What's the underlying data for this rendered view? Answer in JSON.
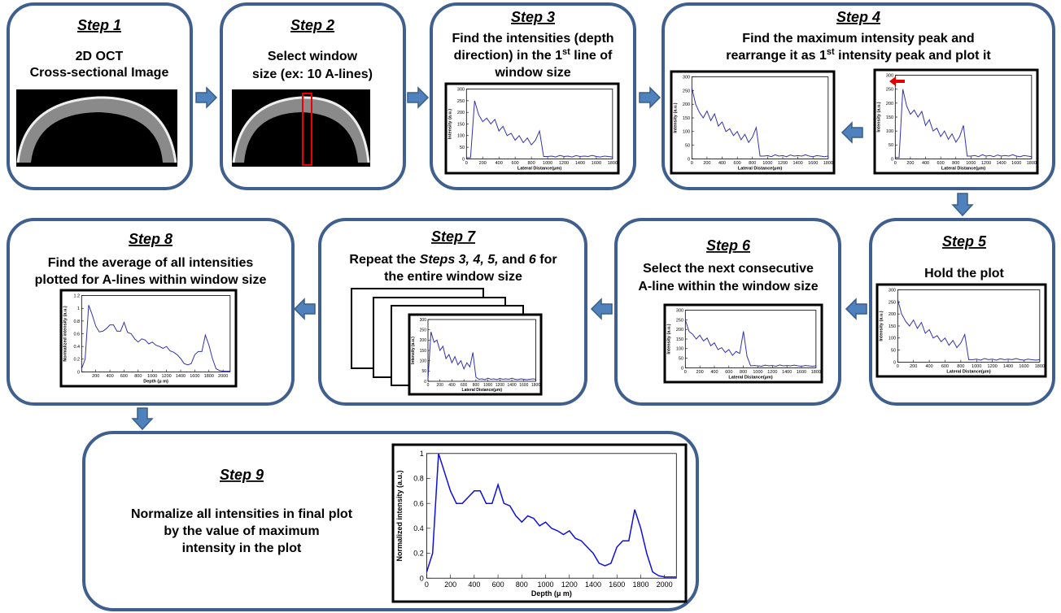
{
  "steps": [
    {
      "title": "Step 1",
      "text": [
        "2D OCT",
        "Cross-sectional Image"
      ]
    },
    {
      "title": "Step 2",
      "text": [
        "Select window",
        "size (ex: 10 A-lines)"
      ]
    },
    {
      "title": "Step 3",
      "text": [
        "Find the intensities (depth",
        "direction) in the 1",
        "st",
        " line of",
        "window size"
      ]
    },
    {
      "title": "Step 4",
      "text": [
        "Find the maximum intensity peak and",
        "rearrange it as 1",
        "st",
        " intensity peak and plot it"
      ]
    },
    {
      "title": "Step 5",
      "text": [
        "Hold the plot"
      ]
    },
    {
      "title": "Step 6",
      "text": [
        "Select the next consecutive",
        "A-line within the window size"
      ]
    },
    {
      "title": "Step 7",
      "text": [
        "Repeat the ",
        "Steps 3, 4, 5,",
        " and ",
        "6",
        " for",
        "the entire window size"
      ]
    },
    {
      "title": "Step 8",
      "text": [
        "Find the average of all intensities",
        "plotted for A-lines within window size"
      ]
    },
    {
      "title": "Step 9",
      "text": [
        "Normalize all intensities in final plot",
        "by the value of maximum",
        "intensity in the plot"
      ]
    }
  ],
  "plots": [
    {
      "type": "line",
      "xlabel": "Lateral Distance(μm)",
      "ylabel": "Intensity (a.u.)",
      "color": "#3333aa",
      "xlim": [
        0,
        1800
      ],
      "ylim": [
        0,
        300
      ],
      "xticks": [
        0,
        200,
        400,
        600,
        800,
        1000,
        1200,
        1400,
        1600,
        1800
      ],
      "yticks": [
        0,
        50,
        100,
        150,
        200,
        250,
        300
      ],
      "x": [
        0,
        50,
        100,
        150,
        200,
        250,
        300,
        350,
        400,
        450,
        500,
        550,
        600,
        650,
        700,
        750,
        800,
        850,
        900,
        950,
        1000,
        1050,
        1100,
        1150,
        1200,
        1250,
        1300,
        1350,
        1400,
        1450,
        1500,
        1550,
        1600,
        1650,
        1700,
        1750,
        1800
      ],
      "values": [
        5,
        5,
        250,
        190,
        160,
        175,
        150,
        170,
        120,
        140,
        100,
        110,
        80,
        100,
        70,
        90,
        60,
        80,
        120,
        10,
        10,
        12,
        8,
        15,
        10,
        12,
        8,
        14,
        10,
        12,
        10,
        15,
        10,
        8,
        12,
        10,
        8
      ]
    },
    {
      "type": "line",
      "xlabel": "Lateral Distance(μm)",
      "ylabel": "Intensity (a.u.)",
      "color": "#3333aa",
      "xlim": [
        0,
        1800
      ],
      "ylim": [
        0,
        300
      ],
      "xticks": [
        0,
        200,
        400,
        600,
        800,
        1000,
        1200,
        1400,
        1600,
        1800
      ],
      "yticks": [
        0,
        50,
        100,
        150,
        200,
        250,
        300
      ],
      "x": [
        0,
        50,
        100,
        150,
        200,
        250,
        300,
        350,
        400,
        450,
        500,
        550,
        600,
        650,
        700,
        750,
        800,
        850,
        900,
        950,
        1000,
        1050,
        1100,
        1150,
        1200,
        1250,
        1300,
        1350,
        1400,
        1450,
        1500,
        1550,
        1600,
        1650,
        1700,
        1750,
        1800
      ],
      "values": [
        260,
        200,
        170,
        150,
        175,
        140,
        165,
        120,
        135,
        100,
        110,
        85,
        100,
        70,
        90,
        60,
        80,
        115,
        10,
        10,
        12,
        8,
        15,
        10,
        12,
        8,
        14,
        10,
        12,
        10,
        15,
        10,
        8,
        12,
        10,
        8,
        10
      ]
    },
    {
      "type": "line",
      "xlabel": "Lateral Distance(μm)",
      "ylabel": "Intensity (a.u.)",
      "color": "#3333aa",
      "xlim": [
        0,
        1800
      ],
      "ylim": [
        0,
        300
      ],
      "xticks": [
        0,
        200,
        400,
        600,
        800,
        1000,
        1200,
        1400,
        1600,
        1800
      ],
      "yticks": [
        0,
        50,
        100,
        150,
        200,
        250,
        300
      ],
      "x": [
        0,
        50,
        100,
        150,
        200,
        250,
        300,
        350,
        400,
        450,
        500,
        550,
        600,
        650,
        700,
        750,
        800,
        850,
        900,
        950,
        1000,
        1050,
        1100,
        1150,
        1200,
        1250,
        1300,
        1350,
        1400,
        1450,
        1500,
        1550,
        1600,
        1650,
        1700,
        1750,
        1800
      ],
      "values": [
        5,
        5,
        250,
        190,
        160,
        175,
        150,
        170,
        120,
        140,
        100,
        110,
        80,
        100,
        70,
        90,
        60,
        80,
        120,
        10,
        10,
        12,
        8,
        15,
        10,
        12,
        8,
        14,
        10,
        12,
        10,
        15,
        10,
        8,
        12,
        10,
        8
      ]
    },
    {
      "type": "line",
      "xlabel": "Lateral Distance(μm)",
      "ylabel": "Intensity (a.u.)",
      "color": "#3333aa",
      "xlim": [
        0,
        1800
      ],
      "ylim": [
        0,
        300
      ],
      "xticks": [
        0,
        200,
        400,
        600,
        800,
        1000,
        1200,
        1400,
        1600,
        1800
      ],
      "yticks": [
        0,
        50,
        100,
        150,
        200,
        250,
        300
      ],
      "x": [
        0,
        50,
        100,
        150,
        200,
        250,
        300,
        350,
        400,
        450,
        500,
        550,
        600,
        650,
        700,
        750,
        800,
        850,
        900,
        950,
        1000,
        1050,
        1100,
        1150,
        1200,
        1250,
        1300,
        1350,
        1400,
        1450,
        1500,
        1550,
        1600,
        1650,
        1700,
        1750,
        1800
      ],
      "values": [
        260,
        200,
        170,
        150,
        175,
        140,
        165,
        120,
        135,
        100,
        110,
        85,
        100,
        70,
        90,
        60,
        80,
        115,
        10,
        10,
        12,
        8,
        15,
        10,
        12,
        8,
        14,
        10,
        12,
        10,
        15,
        10,
        8,
        12,
        10,
        8,
        10
      ]
    },
    {
      "type": "line",
      "xlabel": "Lateral Distance(μm)",
      "ylabel": "Intensity (a.u.)",
      "color": "#3333aa",
      "xlim": [
        0,
        1800
      ],
      "ylim": [
        0,
        300
      ],
      "xticks": [
        0,
        200,
        400,
        600,
        800,
        1000,
        1200,
        1400,
        1600,
        1800
      ],
      "yticks": [
        0,
        50,
        100,
        150,
        200,
        250,
        300
      ],
      "x": [
        0,
        50,
        100,
        150,
        200,
        250,
        300,
        350,
        400,
        450,
        500,
        550,
        600,
        650,
        700,
        750,
        800,
        850,
        900,
        950,
        1000,
        1050,
        1100,
        1150,
        1200,
        1250,
        1300,
        1350,
        1400,
        1450,
        1500,
        1550,
        1600,
        1650,
        1700,
        1750,
        1800
      ],
      "values": [
        250,
        190,
        175,
        150,
        170,
        140,
        155,
        115,
        130,
        95,
        105,
        80,
        95,
        65,
        85,
        75,
        190,
        60,
        10,
        12,
        10,
        8,
        14,
        10,
        12,
        8,
        15,
        10,
        12,
        10,
        14,
        10,
        8,
        12,
        10,
        8,
        10
      ]
    },
    {
      "type": "line",
      "xlabel": "Lateral Distance(μm)",
      "ylabel": "Intensity (a.u.)",
      "color": "#3333aa",
      "xlim": [
        0,
        1800
      ],
      "ylim": [
        0,
        300
      ],
      "xticks": [
        0,
        200,
        400,
        600,
        800,
        1000,
        1200,
        1400,
        1600,
        1800
      ],
      "yticks": [
        0,
        50,
        100,
        150,
        200,
        250,
        300
      ],
      "x": [
        0,
        50,
        100,
        150,
        200,
        250,
        300,
        350,
        400,
        450,
        500,
        550,
        600,
        650,
        700,
        750,
        800,
        850,
        900,
        950,
        1000,
        1050,
        1100,
        1150,
        1200,
        1250,
        1300,
        1350,
        1400,
        1450,
        1500,
        1550,
        1600,
        1650,
        1700,
        1750,
        1800
      ],
      "values": [
        10,
        240,
        190,
        200,
        150,
        170,
        110,
        130,
        90,
        120,
        80,
        100,
        60,
        90,
        70,
        140,
        20,
        10,
        12,
        8,
        15,
        10,
        12,
        8,
        14,
        10,
        12,
        10,
        15,
        10,
        8,
        12,
        10,
        8,
        10,
        12,
        10
      ]
    },
    {
      "type": "line",
      "xlabel": "Depth (μ m)",
      "ylabel": "Normalized intensity (a.u.)",
      "color": "#3333aa",
      "xlim": [
        0,
        2100
      ],
      "ylim": [
        0,
        1.2
      ],
      "xticks": [
        200,
        400,
        600,
        800,
        1000,
        1200,
        1400,
        1600,
        1800,
        2000
      ],
      "yticks": [
        0,
        0.2,
        0.4,
        0.6,
        0.8,
        1,
        1.2
      ],
      "x": [
        0,
        50,
        100,
        150,
        200,
        250,
        300,
        350,
        400,
        450,
        500,
        550,
        600,
        650,
        700,
        750,
        800,
        850,
        900,
        950,
        1000,
        1050,
        1100,
        1150,
        1200,
        1250,
        1300,
        1350,
        1400,
        1450,
        1500,
        1550,
        1600,
        1650,
        1700,
        1750,
        1800,
        1850,
        1900,
        1950,
        2000,
        2050,
        2100
      ],
      "values": [
        0.05,
        0.2,
        1.05,
        0.9,
        0.72,
        0.63,
        0.64,
        0.68,
        0.74,
        0.74,
        0.64,
        0.64,
        0.78,
        0.62,
        0.6,
        0.52,
        0.47,
        0.52,
        0.5,
        0.44,
        0.47,
        0.42,
        0.4,
        0.37,
        0.4,
        0.33,
        0.31,
        0.27,
        0.21,
        0.13,
        0.11,
        0.13,
        0.27,
        0.32,
        0.32,
        0.58,
        0.42,
        0.21,
        0.05,
        0.02,
        0.01,
        0.01,
        0.01
      ]
    },
    {
      "type": "line",
      "xlabel": "Depth (μ m)",
      "ylabel": "Normalized intensity (a.u.)",
      "color": "#1010dd",
      "xlim": [
        0,
        2100
      ],
      "ylim": [
        0,
        1
      ],
      "xticks": [
        0,
        200,
        400,
        600,
        800,
        1000,
        1200,
        1400,
        1600,
        1800,
        2000
      ],
      "yticks": [
        0,
        0.2,
        0.4,
        0.6,
        0.8,
        1
      ],
      "x": [
        0,
        50,
        100,
        150,
        200,
        250,
        300,
        350,
        400,
        450,
        500,
        550,
        600,
        650,
        700,
        750,
        800,
        850,
        900,
        950,
        1000,
        1050,
        1100,
        1150,
        1200,
        1250,
        1300,
        1350,
        1400,
        1450,
        1500,
        1550,
        1600,
        1650,
        1700,
        1750,
        1800,
        1850,
        1900,
        1950,
        2000,
        2050,
        2100
      ],
      "values": [
        0.05,
        0.2,
        1.0,
        0.85,
        0.7,
        0.6,
        0.6,
        0.65,
        0.7,
        0.7,
        0.6,
        0.6,
        0.75,
        0.6,
        0.58,
        0.5,
        0.45,
        0.5,
        0.48,
        0.42,
        0.45,
        0.4,
        0.38,
        0.35,
        0.38,
        0.32,
        0.3,
        0.25,
        0.2,
        0.12,
        0.1,
        0.12,
        0.25,
        0.3,
        0.3,
        0.55,
        0.4,
        0.2,
        0.05,
        0.02,
        0.01,
        0.01,
        0.01
      ]
    }
  ]
}
